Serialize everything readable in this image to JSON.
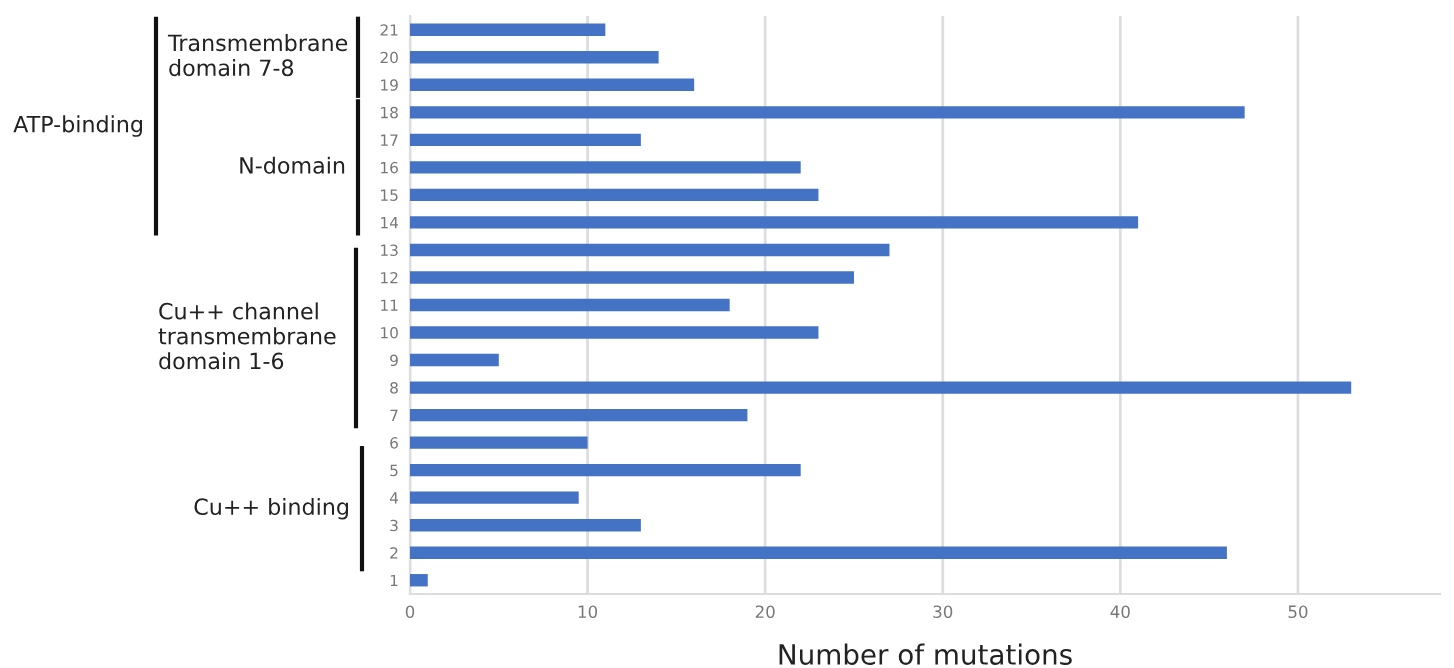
{
  "chart_data": {
    "type": "bar",
    "orientation": "horizontal",
    "xlabel": "Number of mutations",
    "categories": [
      "21",
      "20",
      "19",
      "18",
      "17",
      "16",
      "15",
      "14",
      "13",
      "12",
      "11",
      "10",
      "9",
      "8",
      "7",
      "6",
      "5",
      "4",
      "3",
      "2",
      "1"
    ],
    "values": [
      11,
      14,
      16,
      47,
      13,
      22,
      23,
      41,
      27,
      25,
      18,
      23,
      5,
      53,
      19,
      10,
      22,
      9.5,
      13,
      46,
      1
    ],
    "color": "#4472c4",
    "xlim": [
      0,
      58
    ],
    "xticks": [
      0,
      10,
      20,
      30,
      40,
      50
    ],
    "grid": "x",
    "legend": false,
    "annotations": [
      "ATP-binding",
      "Transmembrane\ndomain 7-8",
      "N-domain",
      "Cu++ channel\ntransmembrane\ndomain 1-6",
      "Cu++ binding"
    ]
  }
}
